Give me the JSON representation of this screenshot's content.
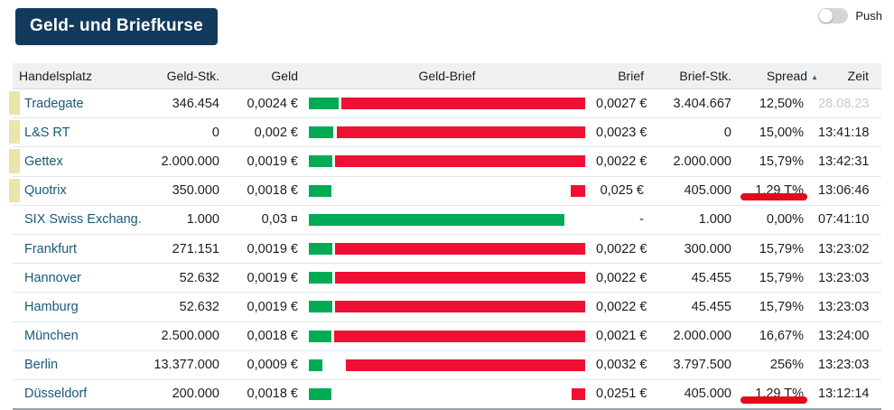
{
  "title": "Geld- und Briefkurse",
  "push_toggle": {
    "label": "Push",
    "state": "off"
  },
  "table": {
    "columns": [
      {
        "key": "venue",
        "label": "Handelsplatz",
        "align": "left"
      },
      {
        "key": "geld_stk",
        "label": "Geld-Stk.",
        "align": "right"
      },
      {
        "key": "geld",
        "label": "Geld",
        "align": "right"
      },
      {
        "key": "geld_brief",
        "label": "Geld-Brief",
        "align": "center"
      },
      {
        "key": "brief",
        "label": "Brief",
        "align": "right"
      },
      {
        "key": "brief_stk",
        "label": "Brief-Stk.",
        "align": "right"
      },
      {
        "key": "spread",
        "label": "Spread",
        "align": "right",
        "sorted": "asc"
      },
      {
        "key": "zeit",
        "label": "Zeit",
        "align": "right"
      }
    ],
    "sort_icon": "sort-asc-triangle",
    "rows": [
      {
        "venue": "Tradegate",
        "highlighted": true,
        "geld_stk": "346.454",
        "geld": "0,0024 €",
        "brief": "0,0027 €",
        "brief_stk": "3.404.667",
        "spread": "12,50%",
        "zeit": "28.08.23",
        "zeit_stale": true,
        "spread_marked": false,
        "bar": {
          "green_pct": 10.8,
          "red_left_pct": 11.8,
          "red_width_pct": 88.2
        }
      },
      {
        "venue": "L&S RT",
        "highlighted": true,
        "geld_stk": "0",
        "geld": "0,002 €",
        "brief": "0,0023 €",
        "brief_stk": "0",
        "spread": "15,00%",
        "zeit": "13:41:18",
        "zeit_stale": false,
        "spread_marked": false,
        "bar": {
          "green_pct": 8.8,
          "red_left_pct": 10.1,
          "red_width_pct": 89.9
        }
      },
      {
        "venue": "Gettex",
        "highlighted": true,
        "geld_stk": "2.000.000",
        "geld": "0,0019 €",
        "brief": "0,0022 €",
        "brief_stk": "2.000.000",
        "spread": "15,79%",
        "zeit": "13:42:31",
        "zeit_stale": false,
        "spread_marked": false,
        "bar": {
          "green_pct": 8.5,
          "red_left_pct": 9.5,
          "red_width_pct": 90.5
        }
      },
      {
        "venue": "Quotrix",
        "highlighted": true,
        "geld_stk": "350.000",
        "geld": "0,0018 €",
        "brief": "0,025 €",
        "brief_stk": "405.000",
        "spread": "1,29 T%",
        "zeit": "13:06:46",
        "zeit_stale": false,
        "spread_marked": true,
        "bar": {
          "green_pct": 8.2,
          "red_left_pct": 94.8,
          "red_width_pct": 5.2
        }
      },
      {
        "venue": "SIX Swiss Exchang.",
        "highlighted": false,
        "geld_stk": "1.000",
        "geld": "0,03 ¤",
        "brief": "-",
        "brief_stk": "1.000",
        "spread": "0,00%",
        "zeit": "07:41:10",
        "zeit_stale": false,
        "spread_marked": false,
        "bar": {
          "green_pct": 92.5,
          "red_left_pct": 0,
          "red_width_pct": 0
        }
      },
      {
        "venue": "Frankfurt",
        "highlighted": false,
        "geld_stk": "271.151",
        "geld": "0,0019 €",
        "brief": "0,0022 €",
        "brief_stk": "300.000",
        "spread": "15,79%",
        "zeit": "13:23:02",
        "zeit_stale": false,
        "spread_marked": false,
        "bar": {
          "green_pct": 8.5,
          "red_left_pct": 9.5,
          "red_width_pct": 90.5
        }
      },
      {
        "venue": "Hannover",
        "highlighted": false,
        "geld_stk": "52.632",
        "geld": "0,0019 €",
        "brief": "0,0022 €",
        "brief_stk": "45.455",
        "spread": "15,79%",
        "zeit": "13:23:03",
        "zeit_stale": false,
        "spread_marked": false,
        "bar": {
          "green_pct": 8.5,
          "red_left_pct": 9.5,
          "red_width_pct": 90.5
        }
      },
      {
        "venue": "Hamburg",
        "highlighted": false,
        "geld_stk": "52.632",
        "geld": "0,0019 €",
        "brief": "0,0022 €",
        "brief_stk": "45.455",
        "spread": "15,79%",
        "zeit": "13:23:03",
        "zeit_stale": false,
        "spread_marked": false,
        "bar": {
          "green_pct": 8.5,
          "red_left_pct": 9.5,
          "red_width_pct": 90.5
        }
      },
      {
        "venue": "München",
        "highlighted": false,
        "geld_stk": "2.500.000",
        "geld": "0,0018 €",
        "brief": "0,0021 €",
        "brief_stk": "2.000.000",
        "spread": "16,67%",
        "zeit": "13:24:00",
        "zeit_stale": false,
        "spread_marked": false,
        "bar": {
          "green_pct": 8.2,
          "red_left_pct": 9.2,
          "red_width_pct": 90.8
        }
      },
      {
        "venue": "Berlin",
        "highlighted": false,
        "geld_stk": "13.377.000",
        "geld": "0,0009 €",
        "brief": "0,0032 €",
        "brief_stk": "3.797.500",
        "spread": "256%",
        "zeit": "13:23:03",
        "zeit_stale": false,
        "spread_marked": false,
        "bar": {
          "green_pct": 4.9,
          "red_left_pct": 13.4,
          "red_width_pct": 86.6
        }
      },
      {
        "venue": "Düsseldorf",
        "highlighted": false,
        "geld_stk": "200.000",
        "geld": "0,0018 €",
        "brief": "0,0251 €",
        "brief_stk": "405.000",
        "spread": "1,29 T%",
        "zeit": "13:12:14",
        "zeit_stale": false,
        "spread_marked": true,
        "bar": {
          "green_pct": 8.2,
          "red_left_pct": 95.1,
          "red_width_pct": 4.9
        }
      }
    ]
  },
  "annotations": [
    {
      "type": "red-underline",
      "target_row": "Quotrix",
      "target_column": "Spread"
    },
    {
      "type": "red-underline",
      "target_row": "Düsseldorf",
      "target_column": "Spread"
    }
  ],
  "colors": {
    "title_bg": "#123a5c",
    "bid_bar_green": "#00ab56",
    "ask_bar_red": "#ee1134",
    "row_highlight_yellow": "#ebe5ab",
    "annotation_red": "#e30b17",
    "venue_link": "#175a78",
    "header_bg": "#eef0f2",
    "stale_time_gray": "#c7cacd"
  }
}
